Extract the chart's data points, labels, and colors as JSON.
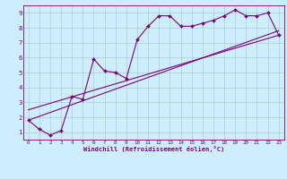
{
  "xlabel": "Windchill (Refroidissement éolien,°C)",
  "bg_color": "#cceeff",
  "line_color": "#7b007b",
  "grid_color": "#b0cccc",
  "xlim": [
    -0.5,
    23.5
  ],
  "ylim": [
    0.5,
    9.5
  ],
  "xticks": [
    0,
    1,
    2,
    3,
    4,
    5,
    6,
    7,
    8,
    9,
    10,
    11,
    12,
    13,
    14,
    15,
    16,
    17,
    18,
    19,
    20,
    21,
    22,
    23
  ],
  "yticks": [
    1,
    2,
    3,
    4,
    5,
    6,
    7,
    8,
    9
  ],
  "scatter_x": [
    0,
    1,
    2,
    3,
    4,
    5,
    6,
    7,
    8,
    9,
    10,
    11,
    12,
    13,
    14,
    15,
    16,
    17,
    18,
    19,
    20,
    21,
    22,
    23
  ],
  "scatter_y": [
    1.8,
    1.2,
    0.8,
    1.1,
    3.4,
    3.2,
    5.9,
    5.1,
    5.0,
    4.6,
    7.2,
    8.1,
    8.8,
    8.8,
    8.1,
    8.1,
    8.3,
    8.5,
    8.8,
    9.2,
    8.8,
    8.8,
    9.0,
    7.5
  ],
  "trend1_x": [
    0,
    23
  ],
  "trend1_y": [
    1.8,
    7.8
  ],
  "trend2_x": [
    0,
    23
  ],
  "trend2_y": [
    2.5,
    7.5
  ]
}
